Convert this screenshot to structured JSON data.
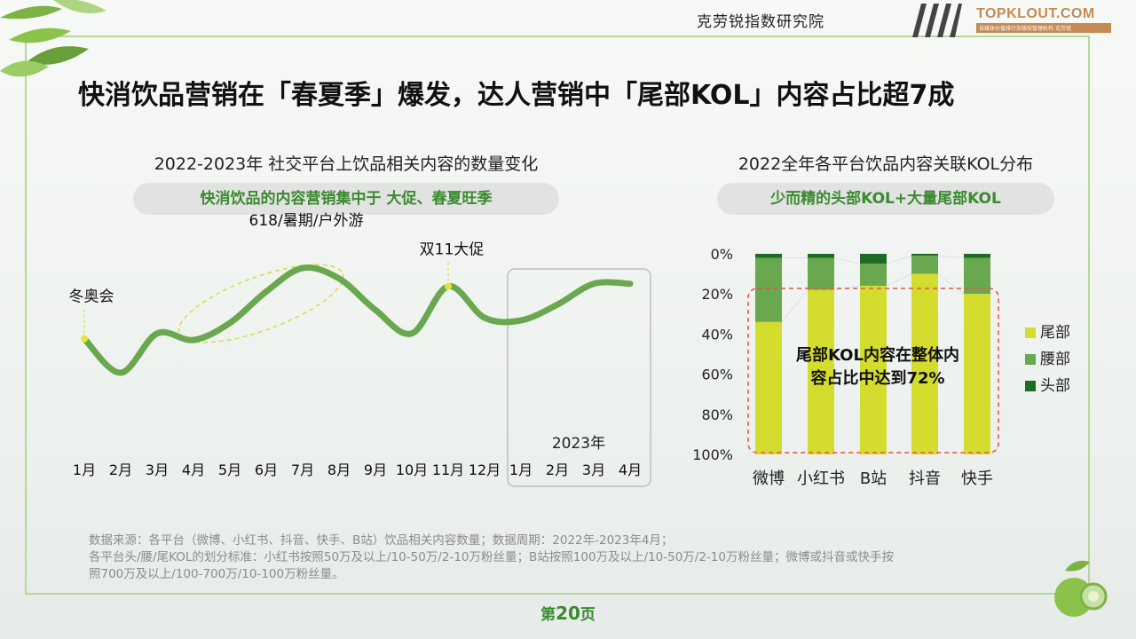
{
  "header": {
    "institute": "克劳锐指数研究院",
    "logo_text": "TOPKLOUT.COM",
    "logo_sub": "自媒体价值排行及版权管理机构 克劳锐"
  },
  "main_title": "快消饮品营销在「春夏季」爆发，达人营销中「尾部KOL」内容占比超7成",
  "left_panel": {
    "subtitle": "2022-2023年 社交平台上饮品相关内容的数量变化",
    "pill": "快消饮品的内容营销集中于 大促、春夏旺季",
    "year_label": "2023年"
  },
  "right_panel": {
    "subtitle": "2022全年各平台饮品内容关联KOL分布",
    "pill": "少而精的头部KOL+大量尾部KOL",
    "callout_line1": "尾部KOL内容在整体内",
    "callout_line2": "容占比中达到72%"
  },
  "chart_data": [
    {
      "type": "line",
      "x": [
        "1月",
        "2月",
        "3月",
        "4月",
        "5月",
        "6月",
        "7月",
        "8月",
        "9月",
        "10月",
        "11月",
        "12月",
        "1月",
        "2月",
        "3月",
        "4月"
      ],
      "y_relative": [
        46,
        20,
        50,
        45,
        58,
        82,
        100,
        92,
        68,
        50,
        86,
        62,
        60,
        72,
        88,
        88
      ],
      "annotations": [
        {
          "label": "冬奥会",
          "x_index": 0
        },
        {
          "label": "618/暑期/户外游",
          "x_index": 6
        },
        {
          "label": "双11大促",
          "x_index": 10
        }
      ],
      "highlight_range": {
        "label": "2023年",
        "from_index": 12,
        "to_index": 15
      }
    },
    {
      "type": "bar",
      "stacked": true,
      "categories": [
        "微博",
        "小红书",
        "B站",
        "抖音",
        "快手"
      ],
      "yticks": [
        "0%",
        "20%",
        "40%",
        "60%",
        "80%",
        "100%"
      ],
      "ylim": [
        0,
        100
      ],
      "series": [
        {
          "name": "头部",
          "color": "#1e6b26",
          "values": [
            2,
            2,
            5,
            1,
            2
          ]
        },
        {
          "name": "腰部",
          "color": "#6aa84f",
          "values": [
            32,
            16,
            11,
            9,
            18
          ]
        },
        {
          "name": "尾部",
          "color": "#d4dc2e",
          "values": [
            66,
            82,
            84,
            90,
            80
          ]
        }
      ],
      "legend_position": "right"
    }
  ],
  "footer": {
    "source_line1": "数据来源：各平台（微博、小红书、抖音、快手、B站）饮品相关内容数量；数据周期：2022年-2023年4月；",
    "source_line2": "各平台头/腰/尾KOL的划分标准：小红书按照50万及以上/10-50万/2-10万粉丝量；B站按照100万及以上/10-50万/2-10万粉丝量；微博或抖音或快手按",
    "source_line3": "照700万及以上/100-700万/10-100万粉丝量。",
    "page_prefix": "第",
    "page_number": "20",
    "page_suffix": "页"
  }
}
